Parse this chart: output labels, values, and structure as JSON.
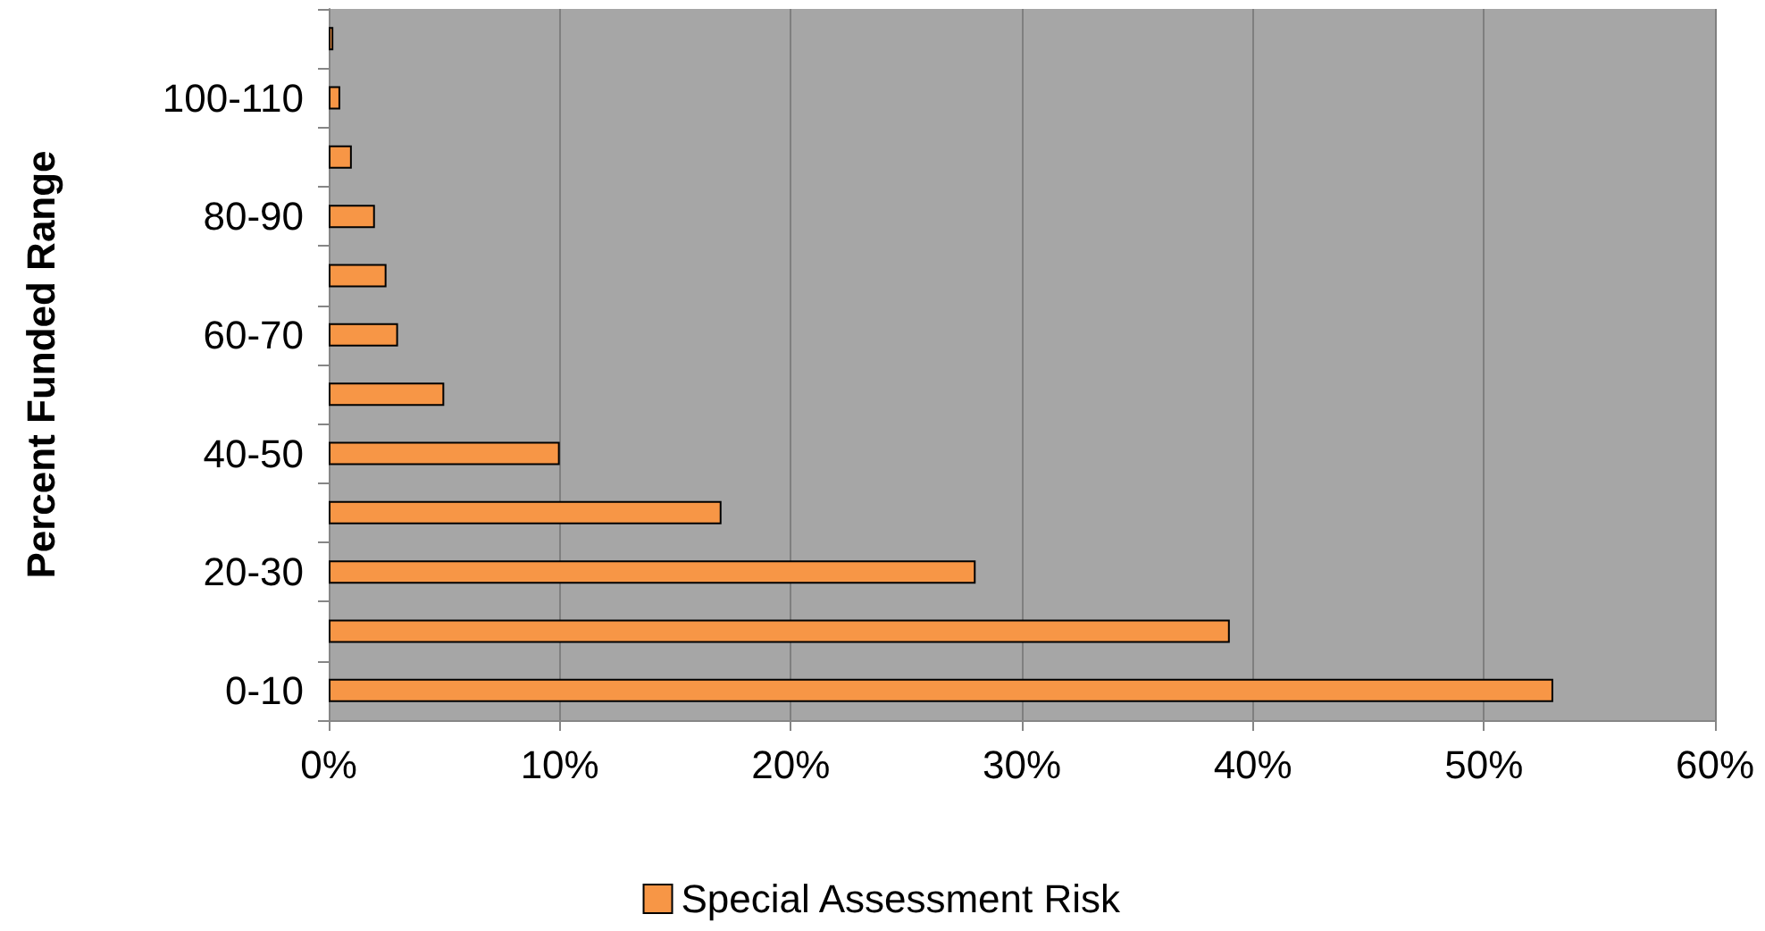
{
  "chart_data": {
    "type": "bar",
    "orientation": "horizontal",
    "ylabel": "Percent Funded Range",
    "categories": [
      null,
      "100-110",
      null,
      "80-90",
      null,
      "60-70",
      null,
      "40-50",
      null,
      "20-30",
      null,
      "0-10"
    ],
    "series": [
      {
        "name": "Special Assessment Risk",
        "color": "#f79646",
        "values": [
          0.2,
          0.5,
          1,
          2,
          2.5,
          3,
          5,
          10,
          17,
          28,
          39,
          53
        ]
      }
    ],
    "xlim": [
      0,
      60
    ],
    "xticks": [
      {
        "value": 0,
        "label": "0%"
      },
      {
        "value": 10,
        "label": "10%"
      },
      {
        "value": 20,
        "label": "20%"
      },
      {
        "value": 30,
        "label": "30%"
      },
      {
        "value": 40,
        "label": "40%"
      },
      {
        "value": 50,
        "label": "50%"
      },
      {
        "value": 60,
        "label": "60%"
      }
    ],
    "grid": "x",
    "legend": "bottom"
  }
}
